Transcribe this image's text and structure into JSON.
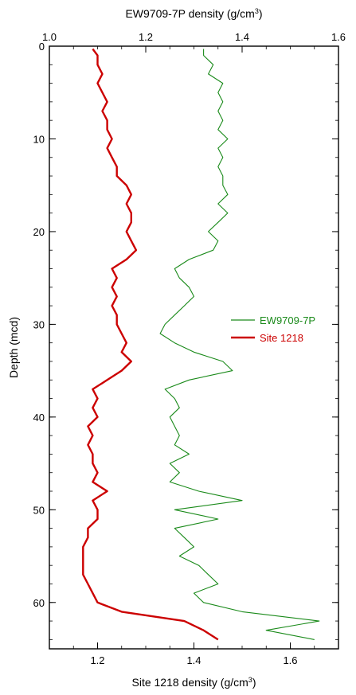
{
  "chart_data": {
    "type": "line",
    "title": "",
    "top_axis": {
      "label_main": "EW9709-7P density (g/cm",
      "label_sup": "3",
      "label_end": ")",
      "ticks": [
        "1.0",
        "1.2",
        "1.4",
        "1.6"
      ],
      "range": [
        1.0,
        1.6
      ]
    },
    "bottom_axis": {
      "label_main": "Site 1218 density (g/cm",
      "label_sup": "3",
      "label_end": ")",
      "ticks": [
        "1.2",
        "1.4",
        "1.6"
      ],
      "range": [
        1.1,
        1.7
      ]
    },
    "left_axis": {
      "label": "Depth (mcd)",
      "ticks": [
        "0",
        "10",
        "20",
        "30",
        "40",
        "50",
        "60"
      ],
      "range": [
        0,
        65
      ],
      "inverted": true
    },
    "legend": {
      "placement": "right-middle",
      "entries": [
        "EW9709-7P",
        "Site 1218"
      ]
    },
    "series": [
      {
        "name": "EW9709-7P",
        "color": "#1a8a1a",
        "axis": "top",
        "depth": [
          0.3,
          1,
          2,
          3,
          4,
          5,
          6,
          7,
          8,
          9,
          10,
          11,
          12,
          13,
          14,
          15,
          16,
          17,
          18,
          19,
          20,
          21,
          22,
          23,
          24,
          25,
          26,
          27,
          28,
          29,
          30,
          31,
          32,
          33,
          34,
          35,
          36,
          37,
          38,
          39,
          40,
          41,
          42,
          43,
          44,
          45,
          46,
          47,
          48,
          49,
          50,
          51,
          52,
          53,
          54,
          55,
          56,
          57,
          58,
          59,
          60,
          61,
          62,
          63,
          64
        ],
        "density": [
          1.32,
          1.32,
          1.34,
          1.33,
          1.36,
          1.35,
          1.36,
          1.35,
          1.36,
          1.35,
          1.37,
          1.35,
          1.36,
          1.35,
          1.36,
          1.36,
          1.37,
          1.35,
          1.37,
          1.35,
          1.33,
          1.35,
          1.34,
          1.29,
          1.26,
          1.27,
          1.29,
          1.3,
          1.28,
          1.26,
          1.24,
          1.23,
          1.26,
          1.3,
          1.36,
          1.38,
          1.29,
          1.24,
          1.26,
          1.27,
          1.25,
          1.26,
          1.27,
          1.26,
          1.29,
          1.25,
          1.27,
          1.25,
          1.31,
          1.4,
          1.26,
          1.35,
          1.26,
          1.28,
          1.3,
          1.27,
          1.31,
          1.33,
          1.35,
          1.3,
          1.32,
          1.4,
          1.56,
          1.45,
          1.55
        ]
      },
      {
        "name": "Site 1218",
        "color": "#cc0000",
        "axis": "bottom",
        "depth": [
          0.3,
          1,
          2,
          3,
          4,
          5,
          6,
          7,
          8,
          9,
          10,
          11,
          12,
          13,
          14,
          15,
          16,
          17,
          18,
          19,
          20,
          21,
          22,
          23,
          24,
          25,
          26,
          27,
          28,
          29,
          30,
          31,
          32,
          33,
          34,
          35,
          36,
          37,
          38,
          39,
          40,
          41,
          42,
          43,
          44,
          45,
          46,
          47,
          48,
          49,
          50,
          51,
          52,
          53,
          54,
          55,
          56,
          57,
          58,
          59,
          60,
          61,
          62,
          63,
          64
        ],
        "density": [
          1.19,
          1.2,
          1.2,
          1.21,
          1.2,
          1.21,
          1.22,
          1.21,
          1.22,
          1.22,
          1.23,
          1.22,
          1.23,
          1.24,
          1.24,
          1.26,
          1.27,
          1.26,
          1.27,
          1.27,
          1.26,
          1.27,
          1.28,
          1.26,
          1.23,
          1.24,
          1.23,
          1.24,
          1.23,
          1.24,
          1.24,
          1.25,
          1.26,
          1.25,
          1.27,
          1.25,
          1.22,
          1.19,
          1.2,
          1.19,
          1.2,
          1.18,
          1.19,
          1.18,
          1.19,
          1.19,
          1.2,
          1.19,
          1.22,
          1.19,
          1.2,
          1.2,
          1.18,
          1.18,
          1.17,
          1.17,
          1.17,
          1.17,
          1.18,
          1.19,
          1.2,
          1.25,
          1.38,
          1.42,
          1.45
        ]
      }
    ]
  }
}
